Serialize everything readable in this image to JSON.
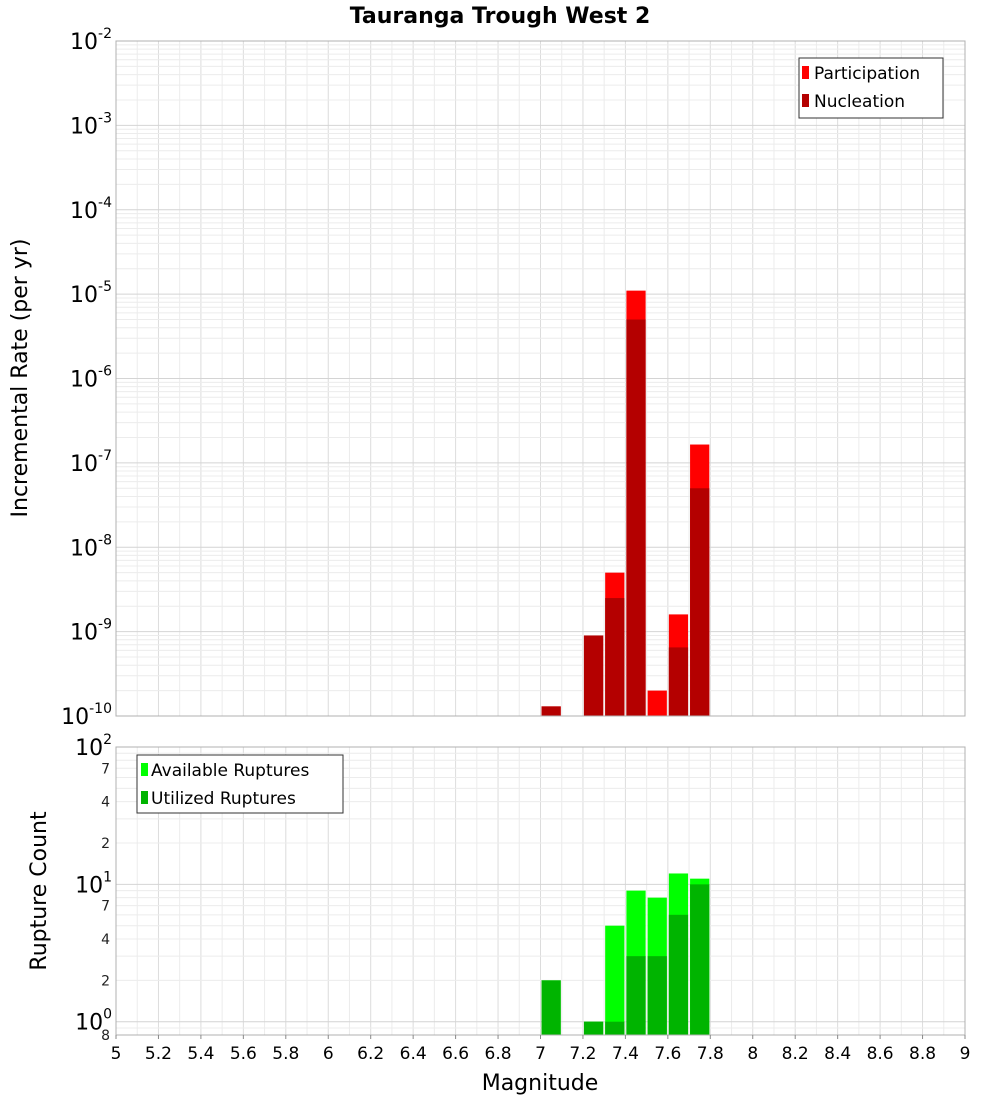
{
  "chart_data": [
    {
      "type": "bar",
      "title": "Tauranga Trough West 2",
      "xlabel": "Magnitude",
      "ylabel": "Incremental Rate (per yr)",
      "yscale": "log",
      "xlim": [
        5,
        9
      ],
      "ylim": [
        1e-10,
        0.01
      ],
      "bin_width": 0.1,
      "legend_position": "top-right",
      "series": [
        {
          "name": "Participation",
          "color": "#ff0000",
          "x": [
            7.05,
            7.25,
            7.35,
            7.45,
            7.55,
            7.65,
            7.75
          ],
          "values": [
            1.3e-10,
            9e-10,
            5e-09,
            1.1e-05,
            2e-10,
            1.6e-09,
            1.65e-07
          ]
        },
        {
          "name": "Nucleation",
          "color": "#b40000",
          "x": [
            7.05,
            7.25,
            7.35,
            7.45,
            7.65,
            7.75
          ],
          "values": [
            1.3e-10,
            9e-10,
            2.5e-09,
            5e-06,
            6.5e-10,
            5e-08
          ]
        }
      ]
    },
    {
      "type": "bar",
      "xlabel": "Magnitude",
      "ylabel": "Rupture Count",
      "yscale": "log",
      "xlim": [
        5,
        9
      ],
      "ylim": [
        0.8,
        100
      ],
      "bin_width": 0.1,
      "legend_position": "top-left",
      "series": [
        {
          "name": "Available Ruptures",
          "color": "#00ff00",
          "x": [
            7.05,
            7.25,
            7.35,
            7.45,
            7.55,
            7.65,
            7.75
          ],
          "values": [
            2,
            1,
            5,
            9,
            8,
            12,
            11
          ]
        },
        {
          "name": "Utilized Ruptures",
          "color": "#00b400",
          "x": [
            7.05,
            7.25,
            7.35,
            7.45,
            7.55,
            7.65,
            7.75
          ],
          "values": [
            2,
            1,
            1,
            3,
            3,
            6,
            10
          ]
        }
      ]
    }
  ],
  "top_axis": {
    "major_ticks": [
      {
        "value": 1e-10,
        "base": "10",
        "exp": "-10"
      },
      {
        "value": 1e-09,
        "base": "10",
        "exp": "-9"
      },
      {
        "value": 1e-08,
        "base": "10",
        "exp": "-8"
      },
      {
        "value": 1e-07,
        "base": "10",
        "exp": "-7"
      },
      {
        "value": 1e-06,
        "base": "10",
        "exp": "-6"
      },
      {
        "value": 1e-05,
        "base": "10",
        "exp": "-5"
      },
      {
        "value": 0.0001,
        "base": "10",
        "exp": "-4"
      },
      {
        "value": 0.001,
        "base": "10",
        "exp": "-3"
      },
      {
        "value": 0.01,
        "base": "10",
        "exp": "-2"
      }
    ]
  },
  "bottom_axis": {
    "major_ticks": [
      {
        "value": 1,
        "base": "10",
        "exp": "0"
      },
      {
        "value": 10,
        "base": "10",
        "exp": "1"
      },
      {
        "value": 100,
        "base": "10",
        "exp": "2"
      }
    ],
    "minor_labels": [
      {
        "value": 0.8,
        "text": "8"
      },
      {
        "value": 2,
        "text": "2"
      },
      {
        "value": 4,
        "text": "4"
      },
      {
        "value": 7,
        "text": "7"
      },
      {
        "value": 20,
        "text": "2"
      },
      {
        "value": 40,
        "text": "4"
      },
      {
        "value": 70,
        "text": "7"
      }
    ]
  },
  "x_ticks": [
    "5",
    "5.2",
    "5.4",
    "5.6",
    "5.8",
    "6",
    "6.2",
    "6.4",
    "6.6",
    "6.8",
    "7",
    "7.2",
    "7.4",
    "7.6",
    "7.8",
    "8",
    "8.2",
    "8.4",
    "8.6",
    "8.8",
    "9"
  ]
}
